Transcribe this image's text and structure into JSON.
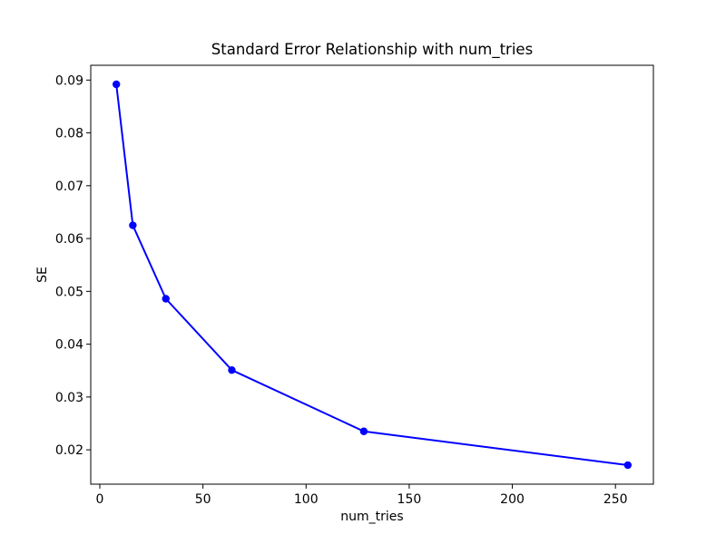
{
  "chart_data": {
    "type": "line",
    "title": "Standard Error Relationship with num_tries",
    "xlabel": "num_tries",
    "ylabel": "SE",
    "x": [
      8,
      16,
      32,
      64,
      128,
      256
    ],
    "series": [
      {
        "name": "SE",
        "values": [
          0.0892,
          0.0625,
          0.0486,
          0.0351,
          0.0235,
          0.0171
        ],
        "color": "#0000ff",
        "marker": "circle",
        "marker_size": 4.2,
        "line_width": 2
      }
    ],
    "xlim": [
      -4.4,
      268.4
    ],
    "ylim": [
      0.0135,
      0.0928
    ],
    "xticks": {
      "values": [
        0,
        50,
        100,
        150,
        200,
        250
      ],
      "labels": [
        "0",
        "50",
        "100",
        "150",
        "200",
        "250"
      ]
    },
    "yticks": {
      "values": [
        0.02,
        0.03,
        0.04,
        0.05,
        0.06,
        0.07,
        0.08,
        0.09
      ],
      "labels": [
        "0.02",
        "0.03",
        "0.04",
        "0.05",
        "0.06",
        "0.07",
        "0.08",
        "0.09"
      ]
    },
    "grid": false,
    "legend": "none",
    "spine_color": "#000000",
    "background": "#ffffff"
  }
}
